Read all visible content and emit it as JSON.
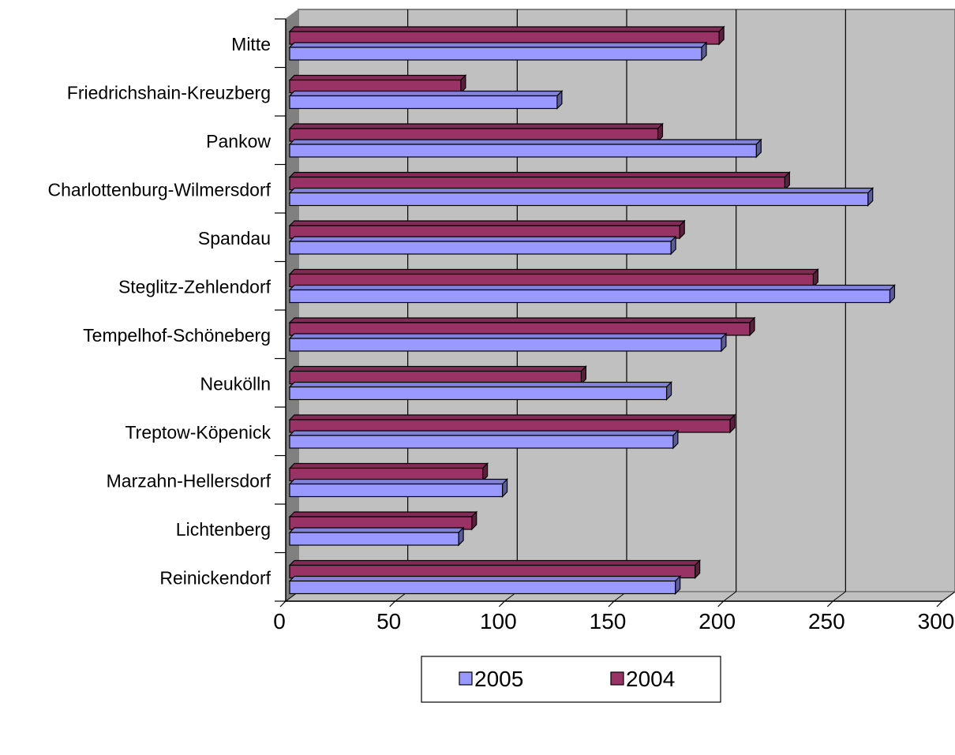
{
  "chart_data": {
    "type": "bar",
    "orientation": "horizontal",
    "style": "3d",
    "categories": [
      "Mitte",
      "Friedrichshain-Kreuzberg",
      "Pankow",
      "Charlottenburg-Wilmersdorf",
      "Spandau",
      "Steglitz-Zehlendorf",
      "Tempelhof-Schöneberg",
      "Neukölln",
      "Treptow-Köpenick",
      "Marzahn-Hellersdorf",
      "Lichtenberg",
      "Reinickendorf"
    ],
    "series": [
      {
        "name": "2005",
        "color": "#9999ff",
        "values": [
          190,
          124,
          215,
          266,
          176,
          276,
          199,
          174,
          177,
          99,
          79,
          178
        ]
      },
      {
        "name": "2004",
        "color": "#993366",
        "values": [
          198,
          80,
          170,
          228,
          180,
          241,
          212,
          135,
          203,
          90,
          85,
          187
        ]
      }
    ],
    "xlim": [
      0,
      300
    ],
    "xticks": [
      "0",
      "50",
      "100",
      "150",
      "200",
      "250",
      "300"
    ],
    "title": "",
    "xlabel": "",
    "ylabel": "",
    "grid": true,
    "legend": "bottom"
  }
}
